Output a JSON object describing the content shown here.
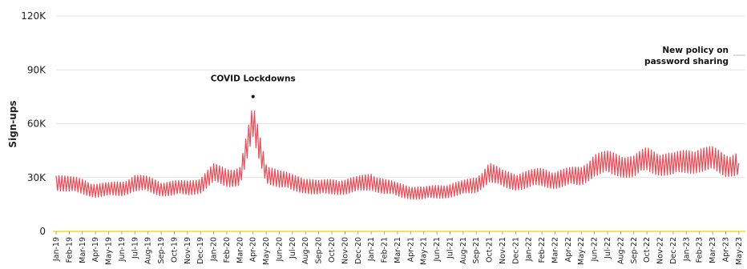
{
  "chart_data": {
    "type": "line",
    "title": "",
    "xlabel": "",
    "ylabel": "Sign-ups",
    "ylim": [
      0,
      120000
    ],
    "yticks": [
      {
        "value": 0,
        "label": "0"
      },
      {
        "value": 30000,
        "label": "30K"
      },
      {
        "value": 60000,
        "label": "60K"
      },
      {
        "value": 90000,
        "label": "90K"
      },
      {
        "value": 120000,
        "label": "120K"
      }
    ],
    "grid": true,
    "line_color": "#e8505b",
    "baseline_color": "#f2d53c",
    "x_tick_labels": [
      "Jan-19",
      "Feb-19",
      "Mar-19",
      "Apr-19",
      "May-19",
      "Jun-19",
      "Jul-19",
      "Aug-19",
      "Sep-19",
      "Oct-19",
      "Nov-19",
      "Dec-19",
      "Jan-20",
      "Feb-20",
      "Mar-20",
      "Apr-20",
      "May-20",
      "Jun-20",
      "Jul-20",
      "Aug-20",
      "Sep-20",
      "Oct-20",
      "Nov-20",
      "Dec-20",
      "Jan-21",
      "Feb-21",
      "Mar-21",
      "Apr-21",
      "May-21",
      "Jun-21",
      "Jul-21",
      "Aug-21",
      "Sep-21",
      "Oct-21",
      "Nov-21",
      "Dec-21",
      "Jan-22",
      "Feb-22",
      "Mar-22",
      "Apr-22",
      "May-22",
      "Jun-22",
      "Jul-22",
      "Aug-22",
      "Sep-22",
      "Oct-22",
      "Nov-22",
      "Dec-22",
      "Jan-23",
      "Feb-23",
      "Mar-23",
      "Apr-23",
      "May-23"
    ],
    "series": [
      {
        "x": [
          "Jan-19",
          "Feb-19",
          "Mar-19",
          "Apr-19",
          "May-19",
          "Jun-19",
          "Jul-19",
          "Aug-19",
          "Sep-19",
          "Oct-19",
          "Nov-19",
          "Dec-19",
          "Jan-20",
          "Feb-20",
          "Mar-20",
          "Apr-20",
          "May-20",
          "Jun-20",
          "Jul-20",
          "Aug-20",
          "Sep-20",
          "Oct-20",
          "Nov-20",
          "Dec-20",
          "Jan-21",
          "Feb-21",
          "Mar-21",
          "Apr-21",
          "May-21",
          "Jun-21",
          "Jul-21",
          "Aug-21",
          "Sep-21",
          "Oct-21",
          "Nov-21",
          "Dec-21",
          "Jan-22",
          "Feb-22",
          "Mar-22",
          "Apr-22",
          "May-22",
          "Jun-22",
          "Jul-22",
          "Aug-22",
          "Sep-22",
          "Oct-22",
          "Nov-22",
          "Dec-22",
          "Jan-23",
          "Feb-23",
          "Mar-23",
          "Apr-23",
          "May-23"
        ],
        "values": [
          28000,
          26000,
          25000,
          23000,
          23000,
          24000,
          27000,
          26000,
          24000,
          24000,
          24000,
          26000,
          32000,
          30000,
          31000,
          60000,
          33000,
          29000,
          27000,
          26000,
          24000,
          25000,
          25000,
          26000,
          28000,
          25000,
          23000,
          22000,
          21000,
          22000,
          23000,
          24000,
          26000,
          33000,
          29000,
          28000,
          29000,
          30000,
          29000,
          30000,
          31000,
          37000,
          38000,
          37000,
          36000,
          40000,
          38000,
          37000,
          39000,
          40000,
          40000,
          37000,
          38000
        ]
      }
    ],
    "annotations": [
      {
        "text": "COVID Lockdowns",
        "x": "Apr-20",
        "y": 80000
      },
      {
        "text_lines": [
          "New policy on",
          "password sharing"
        ],
        "x": "May-23",
        "y": 90000
      }
    ]
  }
}
